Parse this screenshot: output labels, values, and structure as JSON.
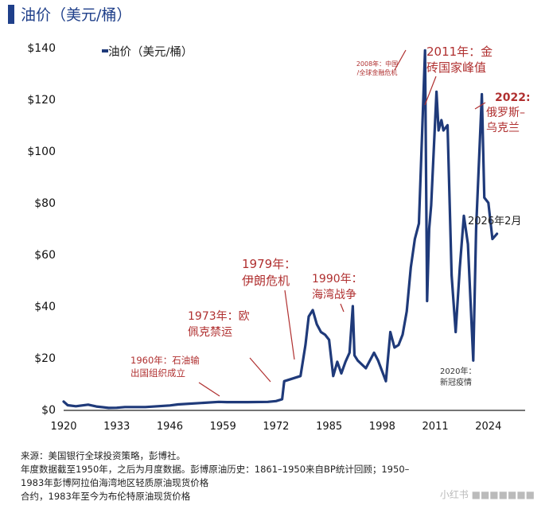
{
  "header": {
    "title": "油价（美元/桶）"
  },
  "chart_data": {
    "type": "line",
    "legend": "油价（美元/桶）",
    "legend_position": "top-left",
    "grid": false,
    "ylim": [
      0,
      140
    ],
    "xlim": [
      1920,
      2033
    ],
    "y_ticks": [
      "$0",
      "$20",
      "$40",
      "$60",
      "$80",
      "$100",
      "$120",
      "$140"
    ],
    "x_ticks": [
      "1920",
      "1933",
      "1946",
      "1959",
      "1972",
      "1985",
      "1998",
      "2011",
      "2024"
    ],
    "line_color": "#1f3a7a",
    "annotation_color": "#b03030",
    "series": [
      {
        "points": [
          [
            1920,
            3.1
          ],
          [
            1921,
            1.7
          ],
          [
            1923,
            1.3
          ],
          [
            1926,
            1.9
          ],
          [
            1928,
            1.2
          ],
          [
            1931,
            0.65
          ],
          [
            1933,
            0.7
          ],
          [
            1935,
            1.0
          ],
          [
            1940,
            1.0
          ],
          [
            1946,
            1.6
          ],
          [
            1948,
            2.0
          ],
          [
            1958,
            3.0
          ],
          [
            1960,
            2.9
          ],
          [
            1965,
            2.9
          ],
          [
            1970,
            3.0
          ],
          [
            1972,
            3.3
          ],
          [
            1973.5,
            4.0
          ],
          [
            1974,
            11.0
          ],
          [
            1978,
            13.0
          ],
          [
            1979.2,
            25.0
          ],
          [
            1980,
            36.0
          ],
          [
            1981,
            38.5
          ],
          [
            1982,
            33.0
          ],
          [
            1983,
            30.0
          ],
          [
            1984,
            29.0
          ],
          [
            1985,
            27.0
          ],
          [
            1986,
            13.0
          ],
          [
            1987,
            18.5
          ],
          [
            1988,
            14.0
          ],
          [
            1989,
            18.5
          ],
          [
            1990,
            22.0
          ],
          [
            1990.8,
            40.0
          ],
          [
            1991.2,
            21.0
          ],
          [
            1992,
            19.0
          ],
          [
            1994,
            16.0
          ],
          [
            1996,
            22.0
          ],
          [
            1997,
            19.0
          ],
          [
            1998.9,
            11.0
          ],
          [
            2000,
            30.0
          ],
          [
            2001,
            24.0
          ],
          [
            2002,
            25.0
          ],
          [
            2003,
            29.0
          ],
          [
            2004,
            38.0
          ],
          [
            2005,
            55.0
          ],
          [
            2006,
            66.0
          ],
          [
            2007,
            72.0
          ],
          [
            2008.5,
            139.0
          ],
          [
            2009,
            42.0
          ],
          [
            2009.5,
            70.0
          ],
          [
            2010,
            79.0
          ],
          [
            2011.3,
            123.0
          ],
          [
            2011.8,
            108.0
          ],
          [
            2012.5,
            112.0
          ],
          [
            2013,
            108.0
          ],
          [
            2014,
            110.0
          ],
          [
            2015,
            52.0
          ],
          [
            2016,
            30.0
          ],
          [
            2017,
            55.0
          ],
          [
            2018,
            75.0
          ],
          [
            2019,
            64.0
          ],
          [
            2020.3,
            19.0
          ],
          [
            2021,
            70.0
          ],
          [
            2022.4,
            122.0
          ],
          [
            2023,
            82.0
          ],
          [
            2024,
            80.0
          ],
          [
            2025,
            66.0
          ],
          [
            2026.1,
            68.0
          ]
        ]
      }
    ],
    "annotations": [
      {
        "id": "a1960",
        "lines": [
          "1960年：石油输",
          "出国组织成立"
        ],
        "points_to": [
          1968,
          1.5
        ]
      },
      {
        "id": "a1973",
        "lines": [
          "1973年：欧",
          "佩克禁运"
        ],
        "points_to": [
          1973.5,
          4.0
        ]
      },
      {
        "id": "a1979",
        "lines": [
          "1979年：",
          "伊朗危机"
        ],
        "points_to": [
          1979.2,
          25.0
        ]
      },
      {
        "id": "a1990",
        "lines": [
          "1990年：",
          "海湾战争"
        ],
        "points_to": [
          1990.8,
          40.0
        ]
      },
      {
        "id": "a2008",
        "lines": [
          "2008年：中国",
          "/全球金融危机"
        ],
        "points_to": [
          2008.5,
          139.0
        ]
      },
      {
        "id": "a2011",
        "lines": [
          "2011年：金",
          "砖国家峰值"
        ],
        "points_to": [
          2011.3,
          123.0
        ]
      },
      {
        "id": "a2022",
        "bold": "2022:",
        "lines": [
          "俄罗斯–",
          "乌克兰"
        ],
        "points_to": [
          2022.4,
          122.0
        ]
      },
      {
        "id": "a2020",
        "lines": [
          "2020年：",
          "新冠疫情"
        ]
      },
      {
        "id": "a2026",
        "lines": [
          "2026年2月"
        ]
      }
    ]
  },
  "footer": {
    "lines": [
      "来源：美国银行全球投资策略，彭博社。",
      "年度数据截至1950年，之后为月度数据。彭博原油历史：1861–1950来自BP统计回顾；1950–",
      "1983年彭博阿拉伯海湾地区轻质原油现货价格",
      "合约，1983年至今为布伦特原油现货价格"
    ],
    "watermark": "小红书 ■■■■■■■"
  }
}
